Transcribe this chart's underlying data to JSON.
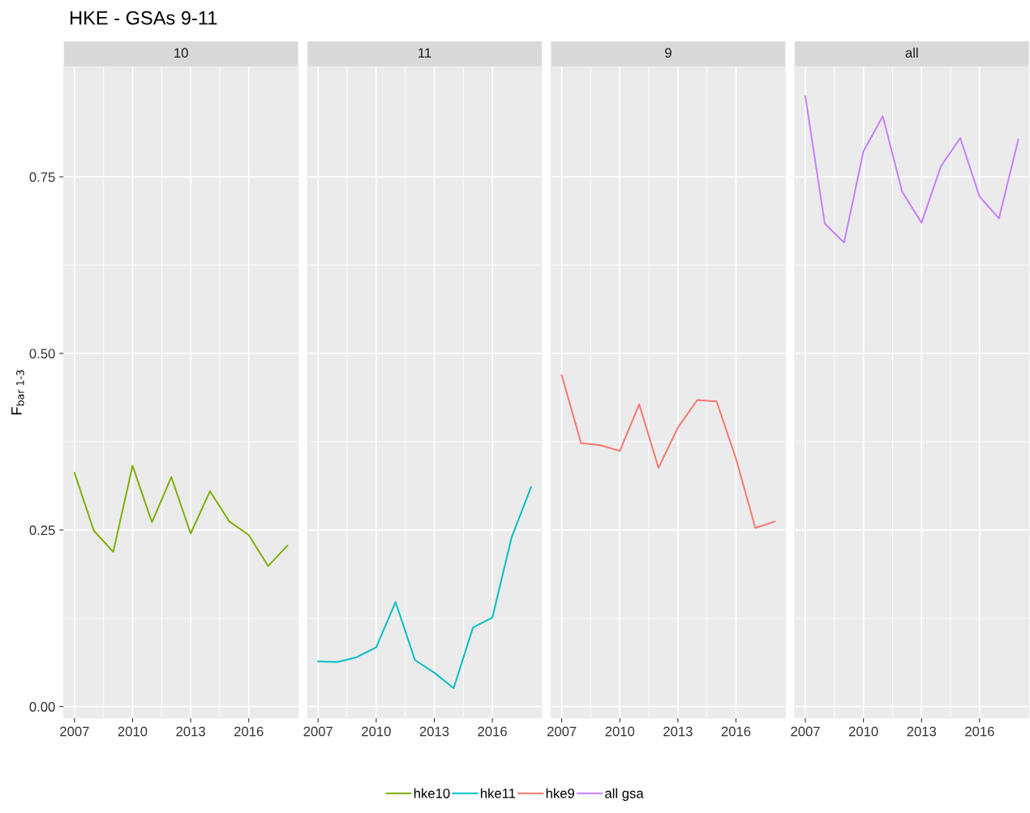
{
  "chart_data": [
    {
      "type": "line",
      "title": "10",
      "ylabel": "F$_{bar 1-3}$",
      "annotations": [
        "HKE - GSAs 9-11"
      ],
      "x": [
        2007,
        2008,
        2009,
        2010,
        2011,
        2012,
        2013,
        2014,
        2015,
        2016,
        2017,
        2018
      ],
      "series": [
        {
          "name": "hke10",
          "color": "#7cae00",
          "values": [
            0.331,
            0.249,
            0.219,
            0.341,
            0.261,
            0.325,
            0.245,
            0.305,
            0.262,
            0.243,
            0.199,
            0.228
          ]
        }
      ],
      "xlim": [
        2006.45,
        2018.55
      ],
      "ylim": [
        -0.016,
        0.906
      ],
      "xticks": [
        2007,
        2010,
        2013,
        2016
      ],
      "yticks": [
        {
          "value": 0,
          "label": "0.00"
        },
        0.25,
        {
          "value": 0.5,
          "label": "0.50"
        },
        0.75
      ],
      "grid": true,
      "legend": "bottom"
    },
    {
      "type": "line",
      "title": "11",
      "x": [
        2007,
        2008,
        2009,
        2010,
        2011,
        2012,
        2013,
        2014,
        2015,
        2016,
        2017,
        2018
      ],
      "series": [
        {
          "name": "hke11",
          "color": "#00bfc4",
          "values": [
            0.064,
            0.063,
            0.07,
            0.084,
            0.148,
            0.066,
            0.048,
            0.026,
            0.112,
            0.126,
            0.24,
            0.311
          ]
        }
      ],
      "xlim": [
        2006.45,
        2018.55
      ],
      "ylim": [
        -0.016,
        0.906
      ],
      "xticks": [
        2007,
        2010,
        2013,
        2016
      ],
      "tick_labels": "x",
      "grid": true,
      "legend": "bottom"
    },
    {
      "type": "line",
      "title": "9",
      "x": [
        2007,
        2008,
        2009,
        2010,
        2011,
        2012,
        2013,
        2014,
        2015,
        2016,
        2017,
        2018
      ],
      "series": [
        {
          "name": "hke9",
          "color": "#f8766d",
          "values": [
            0.469,
            0.373,
            0.37,
            0.362,
            0.428,
            0.338,
            0.395,
            0.434,
            0.432,
            0.351,
            0.253,
            0.262
          ]
        }
      ],
      "xlim": [
        2006.45,
        2018.55
      ],
      "ylim": [
        -0.016,
        0.906
      ],
      "xticks": [
        2007,
        2010,
        2013,
        2016
      ],
      "tick_labels": "x",
      "grid": true,
      "legend": "bottom"
    },
    {
      "type": "line",
      "title": "all",
      "x": [
        2007,
        2008,
        2009,
        2010,
        2011,
        2012,
        2013,
        2014,
        2015,
        2016,
        2017,
        2018
      ],
      "series": [
        {
          "name": "all gsa",
          "color": "#c77cff",
          "values": [
            0.864,
            0.684,
            0.657,
            0.786,
            0.836,
            0.729,
            0.685,
            0.765,
            0.805,
            0.722,
            0.691,
            0.803
          ]
        }
      ],
      "xlim": [
        2006.45,
        2018.55
      ],
      "ylim": [
        -0.016,
        0.906
      ],
      "xticks": [
        2007,
        2010,
        2013,
        2016
      ],
      "tick_labels": "x",
      "grid": true,
      "legend": "bottom"
    }
  ]
}
